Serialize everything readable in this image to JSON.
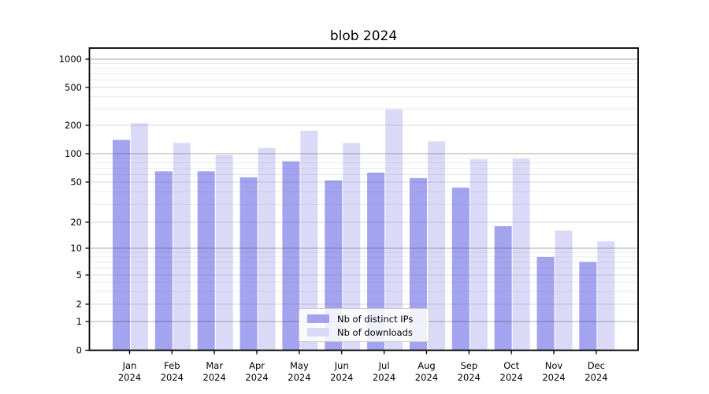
{
  "chart_data": {
    "type": "bar",
    "title": "blob 2024",
    "categories": [
      "Jan",
      "Feb",
      "Mar",
      "Apr",
      "May",
      "Jun",
      "Jul",
      "Aug",
      "Sep",
      "Oct",
      "Nov",
      "Dec"
    ],
    "x_tick_year_line": "2024",
    "series": [
      {
        "name": "Nb of distinct IPs",
        "color": "#a3a3ef",
        "values": [
          140,
          65,
          65,
          56,
          83,
          52,
          63,
          55,
          44,
          18,
          8,
          7
        ]
      },
      {
        "name": "Nb of downloads",
        "color": "#dadaf8",
        "values": [
          210,
          130,
          97,
          115,
          175,
          130,
          295,
          135,
          87,
          88,
          16,
          12
        ]
      }
    ],
    "xlabel": "",
    "ylabel": "",
    "yscale": "symlog",
    "y_ticks": [
      0,
      1,
      2,
      5,
      10,
      20,
      50,
      100,
      200,
      500,
      1000
    ],
    "ylim": [
      0,
      1300
    ],
    "grid": true,
    "legend_position": "lower center"
  }
}
